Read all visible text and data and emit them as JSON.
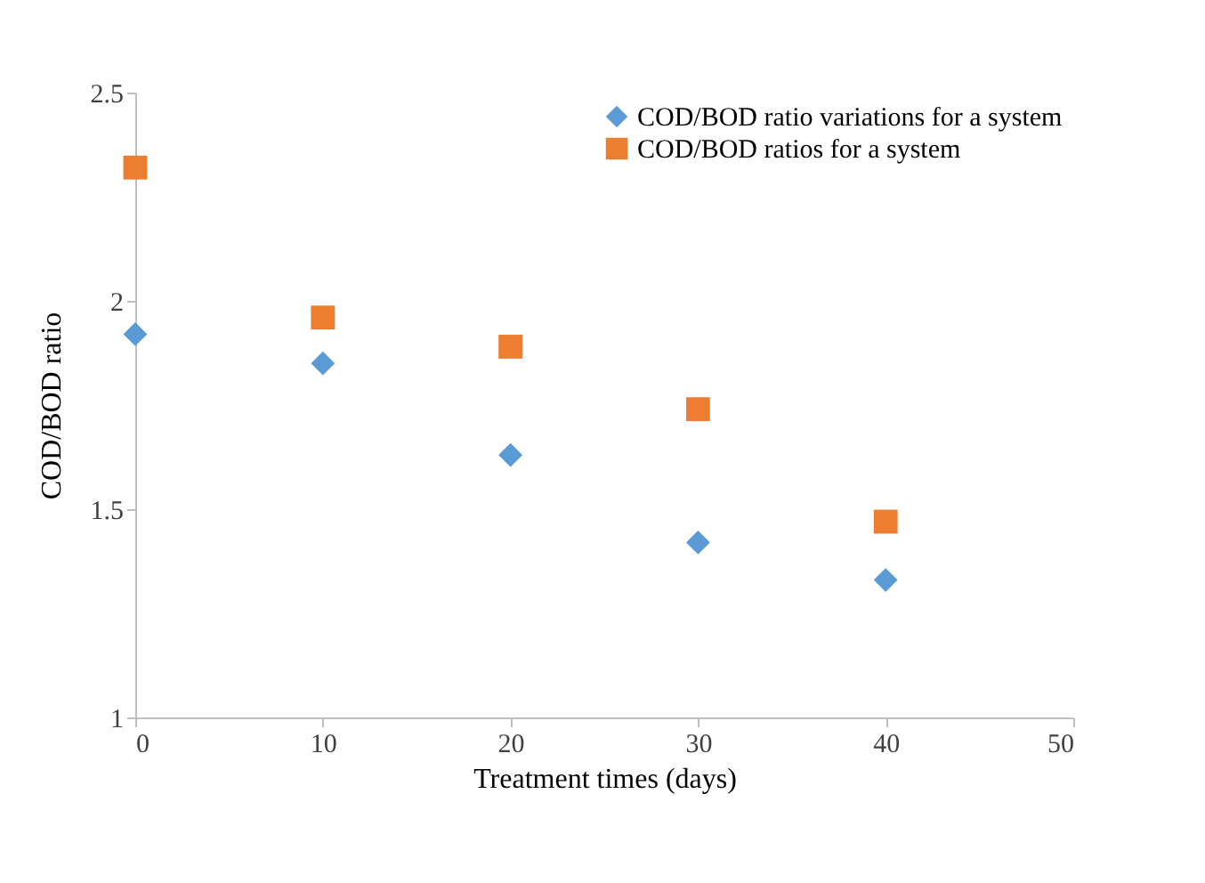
{
  "chart_data": {
    "type": "scatter",
    "xlabel": "Treatment times (days)",
    "ylabel": "COD/BOD ratio",
    "x": [
      0,
      10,
      20,
      30,
      40
    ],
    "series": [
      {
        "name": "COD/BOD ratio variations for a system",
        "color": "#5b9bd5",
        "marker": "diamond",
        "values": [
          1.92,
          1.85,
          1.63,
          1.42,
          1.33
        ]
      },
      {
        "name": "COD/BOD ratios for a system",
        "color": "#ed7d31",
        "marker": "square",
        "values": [
          2.32,
          1.96,
          1.89,
          1.74,
          1.47
        ]
      }
    ],
    "xlim": [
      0,
      50
    ],
    "xticks": [
      0,
      10,
      20,
      30,
      40,
      50
    ],
    "ylim": [
      1,
      2.5
    ],
    "yticks": [
      1,
      1.5,
      2,
      2.5
    ],
    "grid": false,
    "legend": "top right"
  }
}
